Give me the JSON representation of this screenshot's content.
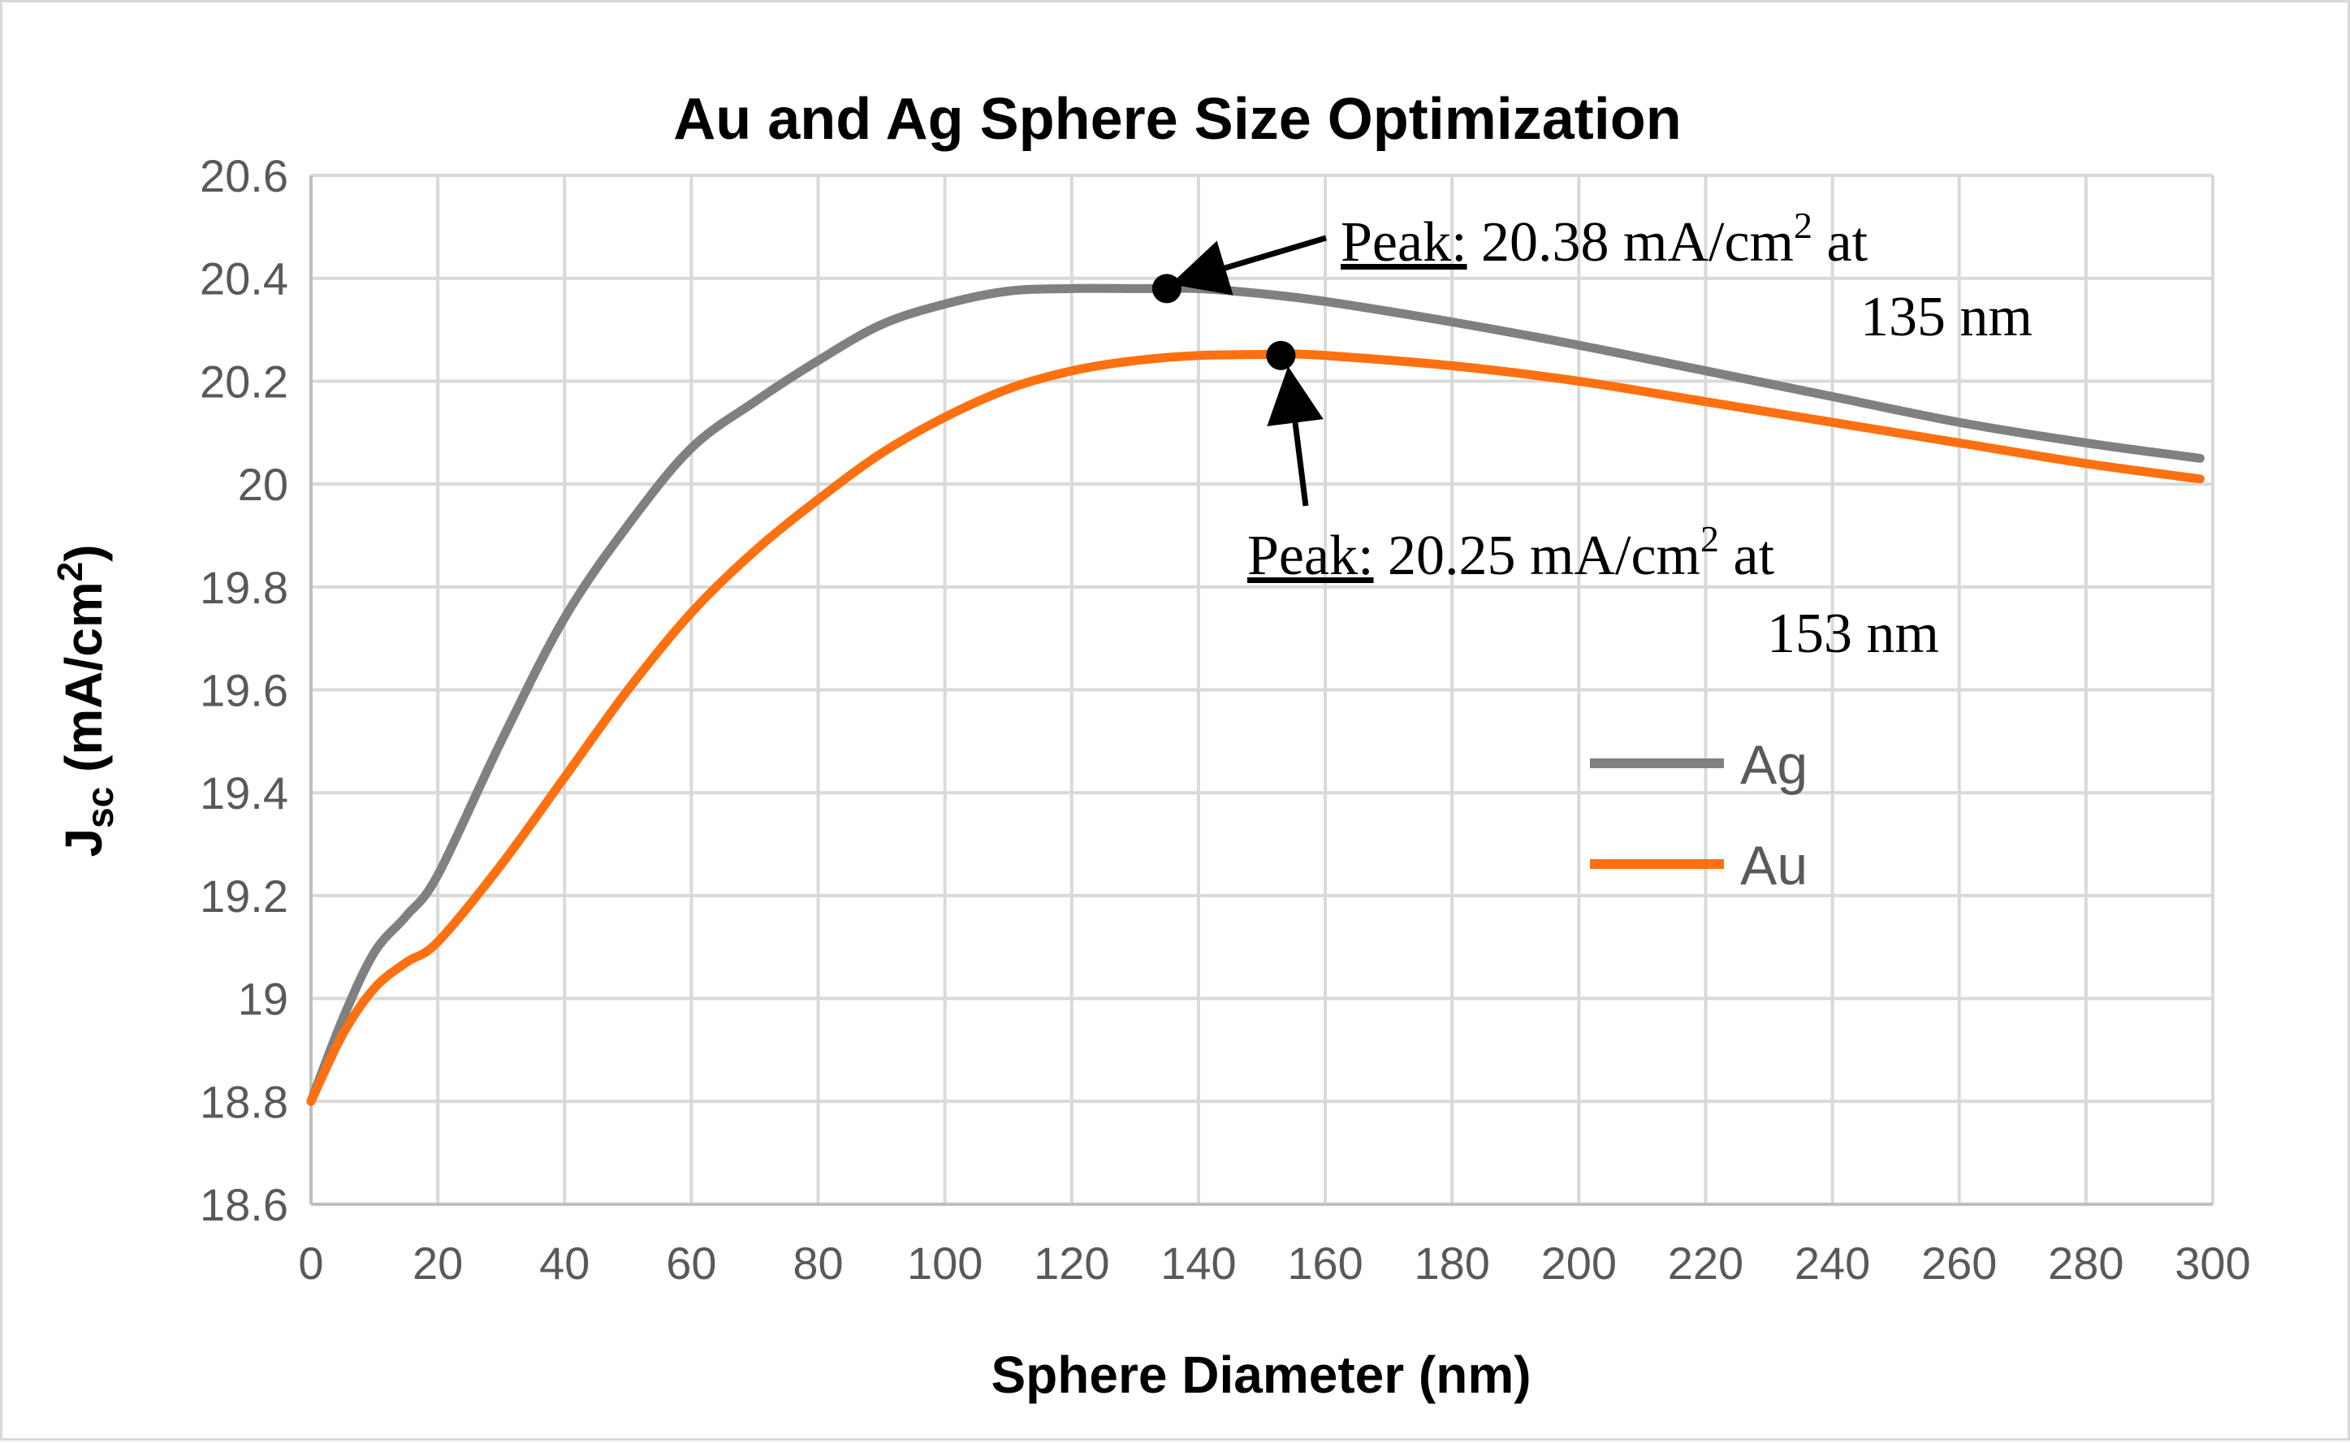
{
  "chart_data": {
    "type": "line",
    "title": "Au and Ag Sphere Size Optimization",
    "xlabel": "Sphere Diameter (nm)",
    "ylabel": {
      "main": "J",
      "sub": "sc",
      "unit_pre": " (mA/cm",
      "unit_sup": "2",
      "unit_post": ")"
    },
    "xlim": [
      0,
      300
    ],
    "ylim": [
      18.6,
      20.6
    ],
    "xticks": [
      "0",
      "20",
      "40",
      "60",
      "80",
      "100",
      "120",
      "140",
      "160",
      "180",
      "200",
      "220",
      "240",
      "260",
      "280",
      "300"
    ],
    "yticks": [
      "18.6",
      "18.8",
      "19",
      "19.2",
      "19.4",
      "19.6",
      "19.8",
      "20",
      "20.2",
      "20.4",
      "20.6"
    ],
    "xtick_values": [
      0,
      20,
      40,
      60,
      80,
      100,
      120,
      140,
      160,
      180,
      200,
      220,
      240,
      260,
      280,
      300
    ],
    "ytick_values": [
      18.6,
      18.8,
      19.0,
      19.2,
      19.4,
      19.6,
      19.8,
      20.0,
      20.2,
      20.4,
      20.6
    ],
    "grid": true,
    "legend_position": "right",
    "series": [
      {
        "name": "Ag",
        "color": "#808080",
        "x": [
          0,
          5,
          10,
          15,
          20,
          30,
          40,
          50,
          60,
          70,
          80,
          90,
          100,
          110,
          120,
          130,
          135,
          140,
          150,
          160,
          180,
          200,
          220,
          240,
          260,
          280,
          298
        ],
        "y": [
          18.8,
          18.96,
          19.09,
          19.16,
          19.24,
          19.5,
          19.74,
          19.92,
          20.07,
          20.16,
          20.24,
          20.31,
          20.35,
          20.375,
          20.38,
          20.38,
          20.38,
          20.38,
          20.37,
          20.355,
          20.315,
          20.27,
          20.22,
          20.17,
          20.12,
          20.08,
          20.05
        ]
      },
      {
        "name": "Au",
        "color": "#ff7010",
        "x": [
          0,
          5,
          10,
          15,
          20,
          30,
          40,
          50,
          60,
          70,
          80,
          90,
          100,
          110,
          120,
          130,
          140,
          150,
          153,
          160,
          180,
          200,
          220,
          240,
          260,
          280,
          298
        ],
        "y": [
          18.8,
          18.93,
          19.02,
          19.07,
          19.11,
          19.26,
          19.43,
          19.6,
          19.75,
          19.87,
          19.97,
          20.06,
          20.13,
          20.185,
          20.22,
          20.24,
          20.25,
          20.252,
          20.253,
          20.25,
          20.23,
          20.2,
          20.16,
          20.12,
          20.08,
          20.04,
          20.01
        ]
      }
    ],
    "annotations": [
      {
        "series": "Ag",
        "x": 135,
        "y": 20.38,
        "label": "Peak:",
        "text": " 20.38 mA/cm",
        "sup": "2",
        "text2": " at",
        "line2": "135 nm"
      },
      {
        "series": "Au",
        "x": 153,
        "y": 20.25,
        "label": "Peak:",
        "text": " 20.25 mA/cm",
        "sup": "2",
        "text2": " at",
        "line2": "153 nm"
      }
    ]
  }
}
